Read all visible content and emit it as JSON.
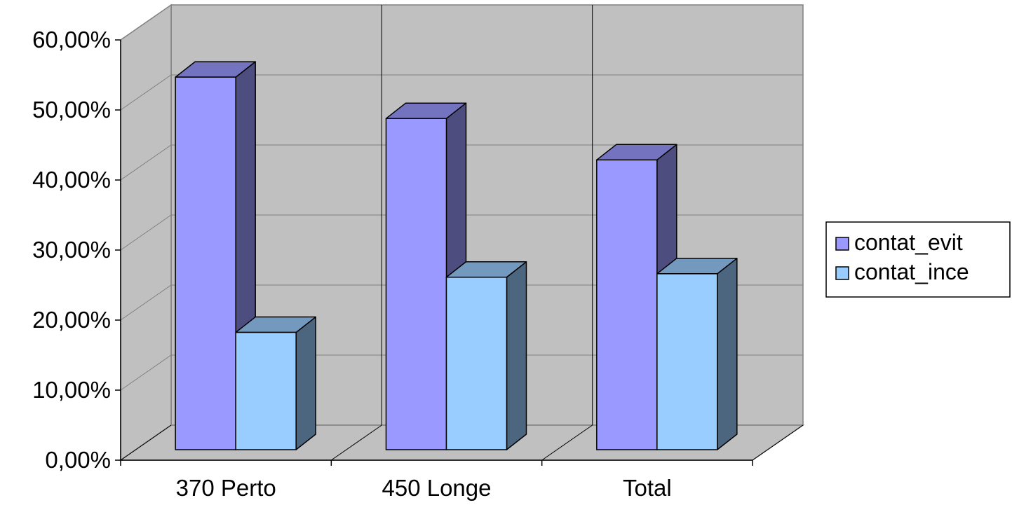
{
  "chart_data": {
    "type": "bar",
    "categories": [
      "370 Perto",
      "450 Longe",
      "Total"
    ],
    "series": [
      {
        "name": "contat_evit",
        "values": [
          0.54,
          0.48,
          0.42
        ],
        "color": "#9999ff"
      },
      {
        "name": "contat_ince",
        "values": [
          0.17,
          0.25,
          0.255
        ],
        "color": "#99ccff"
      }
    ],
    "ylim": [
      0,
      0.6
    ],
    "y_ticks": [
      0,
      0.1,
      0.2,
      0.3,
      0.4,
      0.5,
      0.6
    ],
    "y_tick_labels": [
      "0,00%",
      "10,00%",
      "20,00%",
      "30,00%",
      "40,00%",
      "50,00%",
      "60,00%"
    ],
    "grid": true,
    "three_d": true,
    "legend_position": "right",
    "title": "",
    "xlabel": "",
    "ylabel": ""
  }
}
